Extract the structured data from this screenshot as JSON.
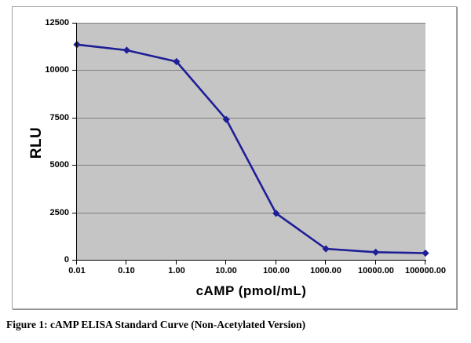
{
  "figure": {
    "caption": "Figure 1: cAMP ELISA Standard Curve (Non-Acetylated Version)"
  },
  "chart_data": {
    "type": "line",
    "title": "",
    "xlabel": "cAMP (pmol/mL)",
    "ylabel": "RLU",
    "x_scale": "logarithmic (evenly spaced decade categories)",
    "categories": [
      "0.01",
      "0.10",
      "1.00",
      "10.00",
      "100.00",
      "1000.00",
      "10000.00",
      "100000.00"
    ],
    "series": [
      {
        "marker": "diamond",
        "values": [
          11350,
          11050,
          10450,
          7400,
          2450,
          580,
          400,
          350
        ]
      }
    ],
    "ylim": [
      0,
      12500
    ],
    "y_ticks": [
      0,
      2500,
      5000,
      7500,
      10000,
      12500
    ],
    "y_tick_labels": [
      "0",
      "2500",
      "5000",
      "7500",
      "10000",
      "12500"
    ],
    "grid": "horizontal",
    "legend": "none",
    "colors": {
      "line": "#1e1e96",
      "marker": "#1e1e96",
      "plot_background": "#c5c5c5",
      "gridline": "#7f7f7f",
      "axis": "#000000",
      "chart_border": "#a3a3a3",
      "text": "#000000"
    }
  }
}
